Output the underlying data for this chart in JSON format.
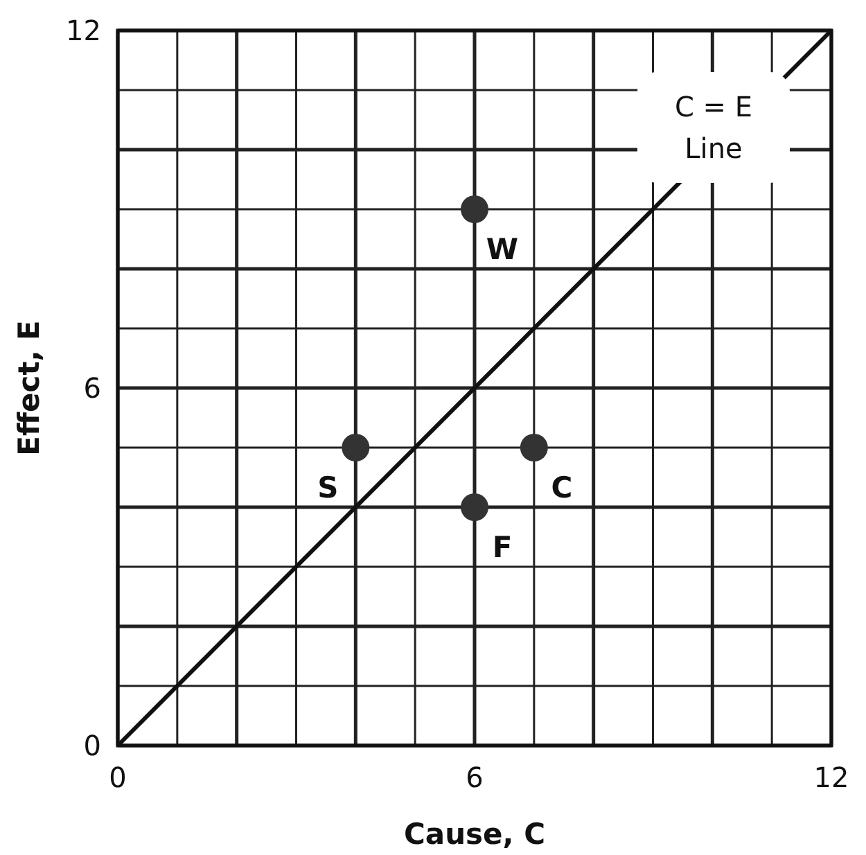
{
  "chart_data": {
    "type": "scatter",
    "xlabel": "Cause, C",
    "ylabel": "Effect, E",
    "xlim": [
      0,
      12
    ],
    "ylim": [
      0,
      12
    ],
    "xticks": [
      0,
      {
        "value": 1,
        "label": null
      },
      {
        "value": 2,
        "label": null
      },
      {
        "value": 3,
        "label": null
      },
      {
        "value": 4,
        "label": null
      },
      {
        "value": 5,
        "label": null
      },
      6,
      {
        "value": 7,
        "label": null
      },
      {
        "value": 8,
        "label": null
      },
      {
        "value": 9,
        "label": null
      },
      {
        "value": 10,
        "label": null
      },
      {
        "value": 11,
        "label": null
      },
      12
    ],
    "yticks": [
      0,
      {
        "value": 1,
        "label": null
      },
      {
        "value": 2,
        "label": null
      },
      {
        "value": 3,
        "label": null
      },
      {
        "value": 4,
        "label": null
      },
      {
        "value": 5,
        "label": null
      },
      6,
      {
        "value": 7,
        "label": null
      },
      {
        "value": 8,
        "label": null
      },
      {
        "value": 9,
        "label": null
      },
      {
        "value": 10,
        "label": null
      },
      {
        "value": 11,
        "label": null
      },
      12
    ],
    "grid": true,
    "series": [
      {
        "type": "line",
        "name": "C = E Line",
        "color": "#111111",
        "x": [
          0,
          12
        ],
        "values": [
          0,
          12
        ]
      },
      {
        "marker": "circle",
        "color": "#333333",
        "x": [
          6,
          4,
          7,
          6
        ],
        "values": [
          9,
          5,
          5,
          4
        ]
      }
    ],
    "annotations": [
      {
        "text": "W",
        "x": 6,
        "y": 9
      },
      {
        "text": "S",
        "x": 4,
        "y": 5
      },
      {
        "text": "C",
        "x": 7,
        "y": 5
      },
      {
        "text": "F",
        "x": 6,
        "y": 4
      }
    ]
  }
}
